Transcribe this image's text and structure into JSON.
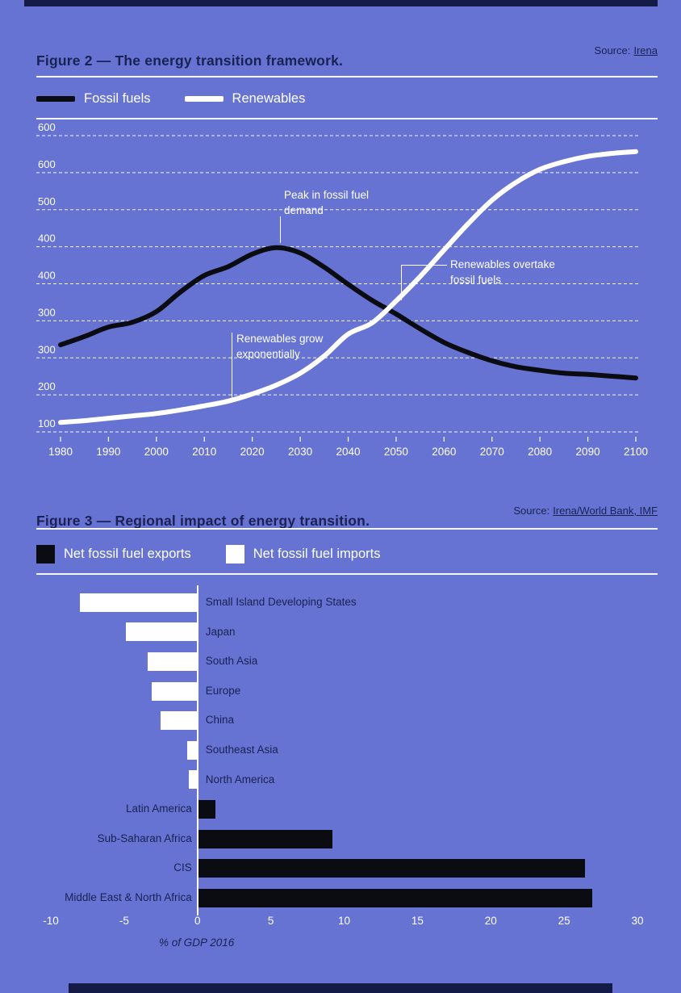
{
  "page": {
    "background_color": "#6673d2",
    "navy_color": "#1a2254",
    "ink_color": "#0a0c12"
  },
  "figure2": {
    "title": "Figure 2 — The energy transition framework.",
    "source_prefix": "Source:",
    "source_link": "Irena",
    "legend": [
      {
        "label": "Fossil fuels",
        "color": "#0a0c12"
      },
      {
        "label": "Renewables",
        "color": "#ffffff"
      }
    ]
  },
  "figure3": {
    "title": "Figure 3 — Regional impact of energy transition.",
    "source_prefix": "Source:",
    "source_link": "Irena/World Bank, IMF",
    "legend": [
      {
        "label": "Net fossil fuel exports",
        "color": "#0a0c12"
      },
      {
        "label": "Net fossil fuel imports",
        "color": "#ffffff"
      }
    ],
    "xlabel": "% of GDP 2016"
  },
  "chart_data": [
    {
      "type": "line",
      "title": "Figure 2 — The energy transition framework.",
      "source": "Irena",
      "grid": "horizontal-dashed",
      "legend_position": "top",
      "x_years": [
        1980,
        1985,
        1990,
        1995,
        2000,
        2005,
        2010,
        2015,
        2020,
        2025,
        2030,
        2035,
        2040,
        2045,
        2050,
        2055,
        2060,
        2065,
        2070,
        2075,
        2080,
        2085,
        2090,
        2095,
        2100
      ],
      "xticks": [
        1980,
        1990,
        2000,
        2010,
        2020,
        2030,
        2040,
        2050,
        2060,
        2070,
        2080,
        2090,
        2100
      ],
      "ytick_labels": [
        "600",
        "600",
        "500",
        "400",
        "400",
        "300",
        "300",
        "200",
        "100"
      ],
      "ylim": [
        100,
        600
      ],
      "series": [
        {
          "name": "Fossil fuels",
          "color": "#0a0c12",
          "values": [
            247,
            261,
            277,
            285,
            303,
            336,
            364,
            379,
            400,
            411,
            402,
            378,
            349,
            322,
            299,
            274,
            251,
            234,
            220,
            210,
            204,
            199,
            197,
            194,
            191
          ]
        },
        {
          "name": "Renewables",
          "color": "#ffffff",
          "values": [
            116,
            119,
            123,
            127,
            131,
            137,
            144,
            152,
            164,
            179,
            199,
            228,
            265,
            284,
            321,
            362,
            407,
            451,
            491,
            521,
            543,
            556,
            565,
            570,
            573
          ]
        }
      ],
      "annotations": [
        {
          "lines": [
            "Peak in fossil fuel",
            "demand"
          ],
          "target_year": 2026
        },
        {
          "lines": [
            "Renewables overtake",
            "fossil fuels"
          ],
          "target_year": 2051
        },
        {
          "lines": [
            "Renewables grow",
            "exponentially"
          ],
          "target_year": 2016
        }
      ]
    },
    {
      "type": "bar",
      "orientation": "horizontal",
      "title": "Figure 3 — Regional impact of energy transition.",
      "source": "Irena/World Bank, IMF",
      "xlabel": "% of GDP 2016",
      "xlim": [
        -10,
        30
      ],
      "xticks": [
        -10,
        -5,
        0,
        5,
        10,
        15,
        20,
        25,
        30
      ],
      "categories": [
        "Small Island Developing States",
        "Japan",
        "South Asia",
        "Europe",
        "China",
        "Southeast Asia",
        "North America",
        "Latin America",
        "Sub-Saharan Africa",
        "CIS",
        "Middle East & North Africa"
      ],
      "values": [
        -8.0,
        -4.9,
        -3.4,
        -3.1,
        -2.5,
        -0.7,
        -0.6,
        1.2,
        9.2,
        26.4,
        26.9
      ],
      "positive_meaning": "Net fossil fuel exports",
      "negative_meaning": "Net fossil fuel imports",
      "positive_color": "#0a0c12",
      "negative_color": "#ffffff"
    }
  ]
}
